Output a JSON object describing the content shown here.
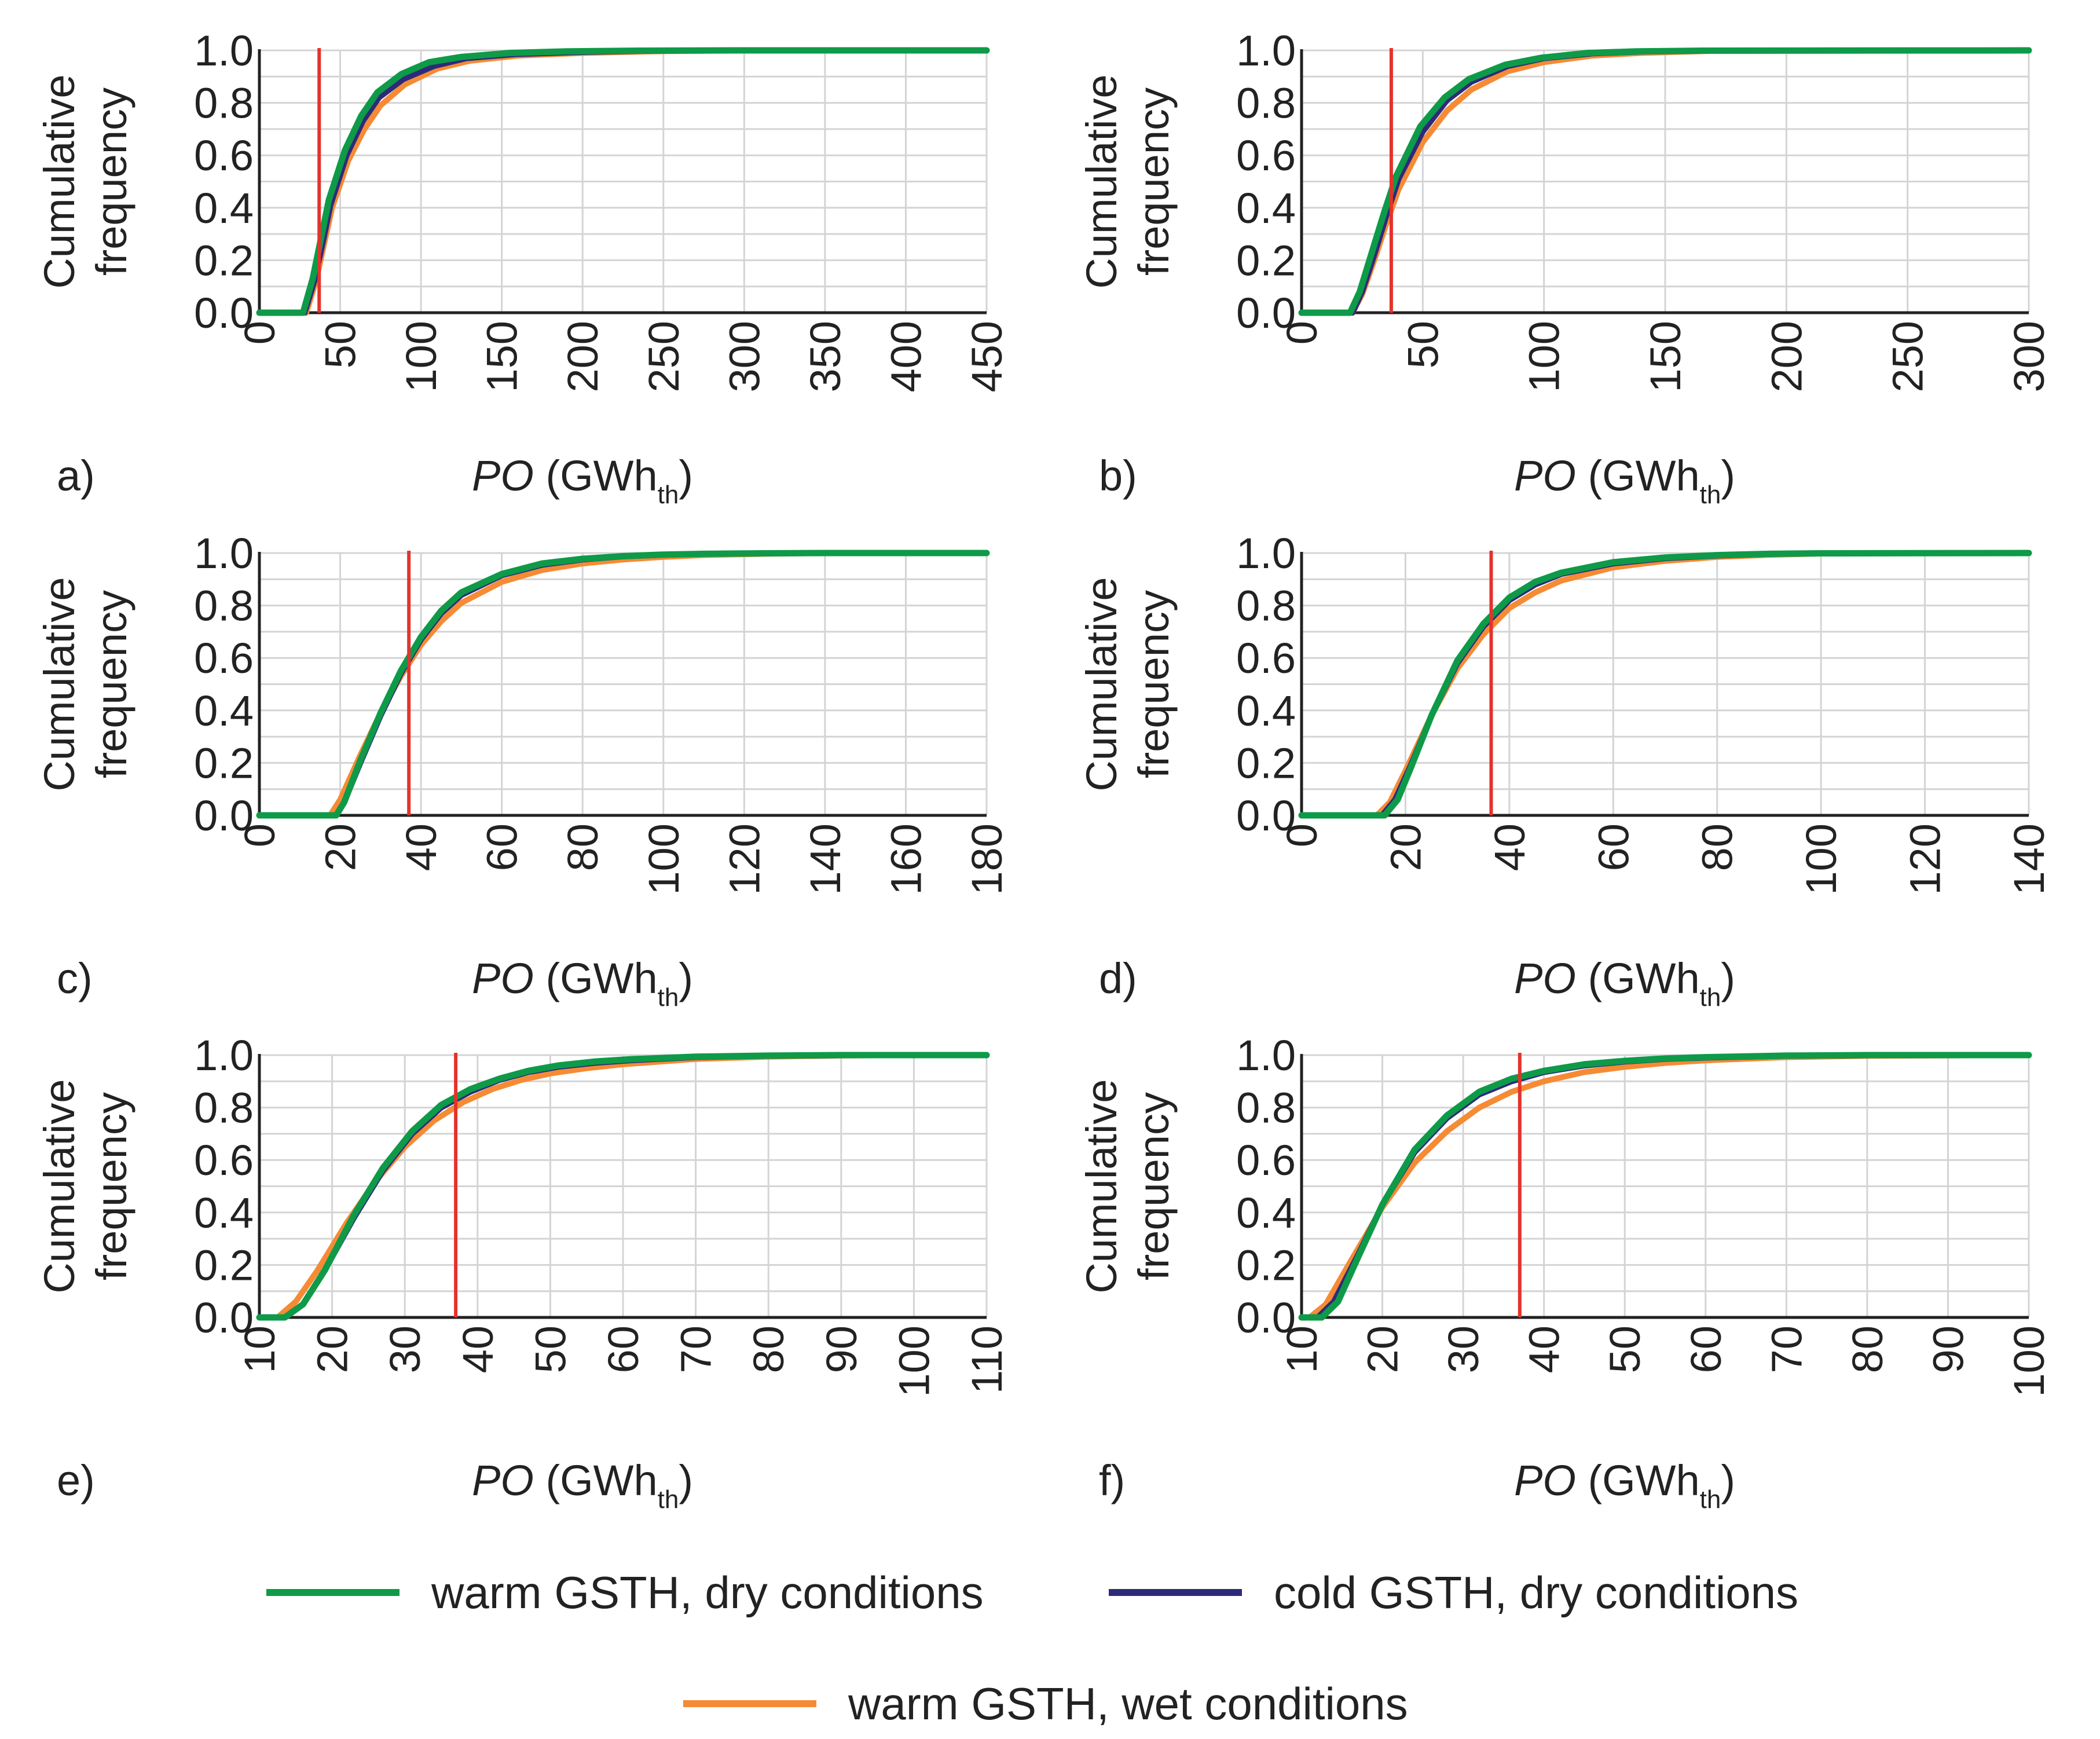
{
  "colors": {
    "warm_dry": "#0e9a48",
    "cold_dry": "#2e2a7a",
    "warm_wet": "#f58b35",
    "threshold": "#e3332c",
    "grid": "#d4d4d4",
    "axis": "#222222"
  },
  "legend": [
    {
      "key": "warm_dry",
      "label": "warm GSTH, dry conditions"
    },
    {
      "key": "cold_dry",
      "label": "cold GSTH, dry conditions"
    },
    {
      "key": "warm_wet",
      "label": "warm GSTH, wet conditions"
    }
  ],
  "chart_data": [
    {
      "type": "line",
      "panel": "a)",
      "ylabel": [
        "Cumulative",
        "frequency"
      ],
      "xlabel": {
        "italic": "PO",
        "unit": "(GWh",
        "sub": "th",
        "close": ")"
      },
      "xlim": [
        0,
        450
      ],
      "ylim": [
        0,
        1.0
      ],
      "x_ticks": [
        0,
        50,
        100,
        150,
        200,
        250,
        300,
        350,
        400,
        450
      ],
      "y_ticks": [
        "0.0",
        "0.2",
        "0.4",
        "0.6",
        "0.8",
        "1.0"
      ],
      "threshold_x": 37,
      "series": [
        {
          "key": "warm_wet",
          "name": "warm GSTH, wet conditions",
          "x": [
            0,
            29,
            35,
            40,
            45,
            55,
            65,
            75,
            90,
            110,
            130,
            160,
            200,
            250,
            300,
            450
          ],
          "y": [
            0,
            0,
            0.12,
            0.26,
            0.4,
            0.58,
            0.7,
            0.79,
            0.87,
            0.93,
            0.96,
            0.98,
            0.99,
            0.997,
            1.0,
            1.0
          ]
        },
        {
          "key": "cold_dry",
          "name": "cold GSTH, dry conditions",
          "x": [
            0,
            28,
            34,
            39,
            44,
            54,
            64,
            74,
            89,
            108,
            128,
            158,
            195,
            240,
            300,
            450
          ],
          "y": [
            0,
            0,
            0.12,
            0.26,
            0.41,
            0.6,
            0.73,
            0.82,
            0.89,
            0.94,
            0.97,
            0.985,
            0.993,
            0.998,
            1.0,
            1.0
          ]
        },
        {
          "key": "warm_dry",
          "name": "warm GSTH, dry conditions",
          "x": [
            0,
            27,
            33,
            38,
            43,
            53,
            63,
            73,
            88,
            105,
            125,
            155,
            190,
            235,
            300,
            450
          ],
          "y": [
            0,
            0,
            0.13,
            0.28,
            0.43,
            0.62,
            0.75,
            0.84,
            0.91,
            0.955,
            0.975,
            0.99,
            0.996,
            0.999,
            1.0,
            1.0
          ]
        }
      ]
    },
    {
      "type": "line",
      "panel": "b)",
      "ylabel": [
        "Cumulative",
        "frequency"
      ],
      "xlabel": {
        "italic": "PO",
        "unit": "(GWh",
        "sub": "th",
        "close": ")"
      },
      "xlim": [
        0,
        300
      ],
      "ylim": [
        0,
        1.0
      ],
      "x_ticks": [
        0,
        50,
        100,
        150,
        200,
        250,
        300
      ],
      "y_ticks": [
        "0.0",
        "0.2",
        "0.4",
        "0.6",
        "0.8",
        "1.0"
      ],
      "threshold_x": 37,
      "series": [
        {
          "key": "warm_wet",
          "name": "warm GSTH, wet conditions",
          "x": [
            0,
            21,
            25,
            30,
            35,
            40,
            50,
            60,
            70,
            85,
            100,
            120,
            140,
            170,
            300
          ],
          "y": [
            0,
            0,
            0.07,
            0.2,
            0.34,
            0.47,
            0.65,
            0.77,
            0.85,
            0.92,
            0.955,
            0.98,
            0.99,
            0.998,
            1.0
          ]
        },
        {
          "key": "cold_dry",
          "name": "cold GSTH, dry conditions",
          "x": [
            0,
            21,
            25,
            30,
            35,
            40,
            50,
            60,
            70,
            85,
            100,
            120,
            140,
            170,
            300
          ],
          "y": [
            0,
            0,
            0.08,
            0.22,
            0.37,
            0.51,
            0.69,
            0.81,
            0.88,
            0.94,
            0.97,
            0.988,
            0.995,
            0.999,
            1.0
          ]
        },
        {
          "key": "warm_dry",
          "name": "warm GSTH, dry conditions",
          "x": [
            0,
            20,
            24,
            29,
            34,
            39,
            49,
            59,
            69,
            84,
            99,
            118,
            138,
            165,
            300
          ],
          "y": [
            0,
            0,
            0.08,
            0.23,
            0.38,
            0.52,
            0.71,
            0.82,
            0.89,
            0.945,
            0.972,
            0.99,
            0.996,
            0.999,
            1.0
          ]
        }
      ]
    },
    {
      "type": "line",
      "panel": "c)",
      "ylabel": [
        "Cumulative",
        "frequency"
      ],
      "xlabel": {
        "italic": "PO",
        "unit": "(GWh",
        "sub": "th",
        "close": ")"
      },
      "xlim": [
        0,
        180
      ],
      "ylim": [
        0,
        1.0
      ],
      "x_ticks": [
        0,
        20,
        40,
        60,
        80,
        100,
        120,
        140,
        160,
        180
      ],
      "y_ticks": [
        "0.0",
        "0.2",
        "0.4",
        "0.6",
        "0.8",
        "1.0"
      ],
      "threshold_x": 37,
      "series": [
        {
          "key": "warm_wet",
          "name": "warm GSTH, wet conditions",
          "x": [
            0,
            17.5,
            20,
            25,
            30,
            35,
            40,
            45,
            50,
            60,
            70,
            80,
            90,
            100,
            110,
            125,
            140,
            180
          ],
          "y": [
            0,
            0,
            0.06,
            0.23,
            0.39,
            0.53,
            0.65,
            0.74,
            0.81,
            0.89,
            0.935,
            0.96,
            0.975,
            0.985,
            0.992,
            0.997,
            1.0,
            1.0
          ]
        },
        {
          "key": "cold_dry",
          "name": "cold GSTH, dry conditions",
          "x": [
            0,
            19,
            21,
            25,
            30,
            35,
            40,
            45,
            50,
            60,
            70,
            80,
            90,
            100,
            110,
            125,
            140,
            180
          ],
          "y": [
            0,
            0,
            0.05,
            0.2,
            0.38,
            0.54,
            0.67,
            0.77,
            0.84,
            0.915,
            0.955,
            0.975,
            0.987,
            0.993,
            0.997,
            0.999,
            1.0,
            1.0
          ]
        },
        {
          "key": "warm_dry",
          "name": "warm GSTH, dry conditions",
          "x": [
            0,
            19,
            21,
            25,
            30,
            35,
            40,
            45,
            50,
            60,
            70,
            80,
            90,
            100,
            110,
            125,
            140,
            180
          ],
          "y": [
            0,
            0,
            0.05,
            0.21,
            0.39,
            0.55,
            0.68,
            0.78,
            0.85,
            0.92,
            0.96,
            0.978,
            0.988,
            0.994,
            0.997,
            0.999,
            1.0,
            1.0
          ]
        }
      ]
    },
    {
      "type": "line",
      "panel": "d)",
      "ylabel": [
        "Cumulative",
        "frequency"
      ],
      "xlabel": {
        "italic": "PO",
        "unit": "(GWh",
        "sub": "th",
        "close": ")"
      },
      "xlim": [
        0,
        140
      ],
      "ylim": [
        0,
        1.0
      ],
      "x_ticks": [
        0,
        20,
        40,
        60,
        80,
        100,
        120,
        140
      ],
      "y_ticks": [
        "0.0",
        "0.2",
        "0.4",
        "0.6",
        "0.8",
        "1.0"
      ],
      "threshold_x": 36.5,
      "series": [
        {
          "key": "warm_wet",
          "name": "warm GSTH, wet conditions",
          "x": [
            0,
            14.5,
            17,
            20,
            25,
            30,
            35,
            40,
            45,
            50,
            60,
            70,
            80,
            90,
            100,
            140
          ],
          "y": [
            0,
            0,
            0.05,
            0.17,
            0.38,
            0.56,
            0.69,
            0.79,
            0.85,
            0.895,
            0.945,
            0.97,
            0.985,
            0.993,
            0.998,
            1.0
          ]
        },
        {
          "key": "cold_dry",
          "name": "cold GSTH, dry conditions",
          "x": [
            0,
            15.5,
            18,
            21,
            25,
            30,
            35,
            40,
            45,
            50,
            60,
            70,
            80,
            90,
            100,
            140
          ],
          "y": [
            0,
            0,
            0.06,
            0.19,
            0.38,
            0.58,
            0.72,
            0.82,
            0.88,
            0.92,
            0.96,
            0.98,
            0.99,
            0.996,
            0.999,
            1.0
          ]
        },
        {
          "key": "warm_dry",
          "name": "warm GSTH, dry conditions",
          "x": [
            0,
            16,
            18.5,
            21,
            25,
            30,
            35,
            40,
            45,
            50,
            60,
            70,
            80,
            90,
            100,
            140
          ],
          "y": [
            0,
            0,
            0.06,
            0.18,
            0.38,
            0.59,
            0.73,
            0.83,
            0.89,
            0.925,
            0.965,
            0.983,
            0.992,
            0.997,
            0.999,
            1.0
          ]
        }
      ]
    },
    {
      "type": "line",
      "panel": "e)",
      "ylabel": [
        "Cumulative",
        "frequency"
      ],
      "xlabel": {
        "italic": "PO",
        "unit": "(GWh",
        "sub": "th",
        "close": ")"
      },
      "xlim": [
        10,
        110
      ],
      "ylim": [
        0,
        1.0
      ],
      "x_ticks": [
        10,
        20,
        30,
        40,
        50,
        60,
        70,
        80,
        90,
        100,
        110
      ],
      "y_ticks": [
        "0.0",
        "0.2",
        "0.4",
        "0.6",
        "0.8",
        "1.0"
      ],
      "threshold_x": 37,
      "series": [
        {
          "key": "warm_wet",
          "name": "warm GSTH, wet conditions",
          "x": [
            10,
            12.5,
            15,
            18,
            22,
            26,
            30,
            34,
            38,
            42,
            46,
            50,
            55,
            60,
            70,
            80,
            90,
            100,
            110
          ],
          "y": [
            0,
            0,
            0.06,
            0.18,
            0.36,
            0.52,
            0.65,
            0.75,
            0.82,
            0.87,
            0.905,
            0.93,
            0.95,
            0.965,
            0.985,
            0.994,
            0.998,
            1.0,
            1.0
          ]
        },
        {
          "key": "cold_dry",
          "name": "cold GSTH, dry conditions",
          "x": [
            10,
            13.5,
            16,
            19,
            23,
            27,
            31,
            35,
            39,
            43,
            47,
            51,
            56,
            61,
            70,
            80,
            90,
            100,
            110
          ],
          "y": [
            0,
            0,
            0.05,
            0.18,
            0.38,
            0.56,
            0.7,
            0.8,
            0.86,
            0.905,
            0.935,
            0.955,
            0.97,
            0.98,
            0.992,
            0.997,
            0.999,
            1.0,
            1.0
          ]
        },
        {
          "key": "warm_dry",
          "name": "warm GSTH, dry conditions",
          "x": [
            10,
            13.5,
            16,
            19,
            23,
            27,
            31,
            35,
            39,
            43,
            47,
            51,
            56,
            61,
            70,
            80,
            90,
            100,
            110
          ],
          "y": [
            0,
            0,
            0.05,
            0.18,
            0.39,
            0.57,
            0.71,
            0.81,
            0.87,
            0.91,
            0.94,
            0.96,
            0.975,
            0.984,
            0.994,
            0.998,
            1.0,
            1.0,
            1.0
          ]
        }
      ]
    },
    {
      "type": "line",
      "panel": "f)",
      "ylabel": [
        "Cumulative",
        "frequency"
      ],
      "xlabel": {
        "italic": "PO",
        "unit": "(GWh",
        "sub": "th",
        "close": ")"
      },
      "xlim": [
        10,
        100
      ],
      "ylim": [
        0,
        1.0
      ],
      "x_ticks": [
        10,
        20,
        30,
        40,
        50,
        60,
        70,
        80,
        90,
        100
      ],
      "y_ticks": [
        "0.0",
        "0.2",
        "0.4",
        "0.6",
        "0.8",
        "1.0"
      ],
      "threshold_x": 37,
      "series": [
        {
          "key": "warm_wet",
          "name": "warm GSTH, wet conditions",
          "x": [
            10,
            11,
            13,
            16,
            20,
            24,
            28,
            32,
            36,
            40,
            45,
            50,
            55,
            60,
            70,
            80,
            100
          ],
          "y": [
            0,
            0,
            0.05,
            0.21,
            0.42,
            0.59,
            0.71,
            0.8,
            0.86,
            0.9,
            0.935,
            0.955,
            0.97,
            0.98,
            0.992,
            0.997,
            1.0
          ]
        },
        {
          "key": "cold_dry",
          "name": "cold GSTH, dry conditions",
          "x": [
            10,
            12,
            14,
            17,
            20,
            24,
            28,
            32,
            36,
            40,
            45,
            50,
            55,
            60,
            70,
            80,
            100
          ],
          "y": [
            0,
            0,
            0.06,
            0.24,
            0.43,
            0.63,
            0.76,
            0.85,
            0.9,
            0.935,
            0.96,
            0.975,
            0.985,
            0.99,
            0.997,
            0.999,
            1.0
          ]
        },
        {
          "key": "warm_dry",
          "name": "warm GSTH, dry conditions",
          "x": [
            10,
            12.5,
            14.5,
            17,
            20,
            24,
            28,
            32,
            36,
            40,
            45,
            50,
            55,
            60,
            70,
            80,
            100
          ],
          "y": [
            0,
            0,
            0.06,
            0.23,
            0.43,
            0.64,
            0.77,
            0.86,
            0.91,
            0.94,
            0.965,
            0.978,
            0.987,
            0.992,
            0.998,
            1.0,
            1.0
          ]
        }
      ]
    }
  ]
}
